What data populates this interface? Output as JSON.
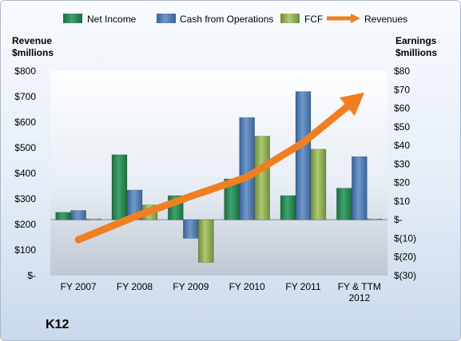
{
  "chart_data": {
    "type": "bar",
    "title": "K12",
    "categories": [
      "FY 2007",
      "FY 2008",
      "FY 2009",
      "FY 2010",
      "FY 2011",
      "FY & TTM 2012"
    ],
    "left_axis": {
      "label_line1": "Revenue",
      "label_line2": "$millions",
      "ylim": [
        0,
        800
      ],
      "ticks": [
        0,
        100,
        200,
        300,
        400,
        500,
        600,
        700,
        800
      ],
      "tick_labels": [
        "$-",
        "$100",
        "$200",
        "$300",
        "$400",
        "$500",
        "$600",
        "$700",
        "$800"
      ]
    },
    "right_axis": {
      "label_line1": "Earnings",
      "label_line2": "$millions",
      "ylim": [
        -30,
        80
      ],
      "ticks": [
        -30,
        -20,
        -10,
        0,
        10,
        20,
        30,
        40,
        50,
        60,
        70,
        80
      ],
      "tick_labels": [
        "$(30)",
        "$(20)",
        "$(10)",
        "$-",
        "$10",
        "$20",
        "$30",
        "$40",
        "$50",
        "$60",
        "$70",
        "$80"
      ]
    },
    "series": [
      {
        "name": "Net Income",
        "kind": "bar",
        "axis": "right",
        "color": "#2e8b57",
        "values": [
          4,
          35,
          13,
          22,
          13,
          17
        ]
      },
      {
        "name": "Cash from Operations",
        "kind": "bar",
        "axis": "right",
        "color": "#4f81bd",
        "values": [
          5,
          16,
          -10,
          55,
          69,
          34
        ]
      },
      {
        "name": "FCF",
        "kind": "bar",
        "axis": "right",
        "color": "#9bbb59",
        "values": [
          0.5,
          8,
          -23,
          45,
          38,
          0.5
        ]
      },
      {
        "name": "Revenues",
        "kind": "line",
        "axis": "left",
        "color": "#f07f22",
        "values": [
          140,
          230,
          310,
          385,
          520,
          700
        ]
      }
    ],
    "legend_position": "top",
    "grid": false
  }
}
